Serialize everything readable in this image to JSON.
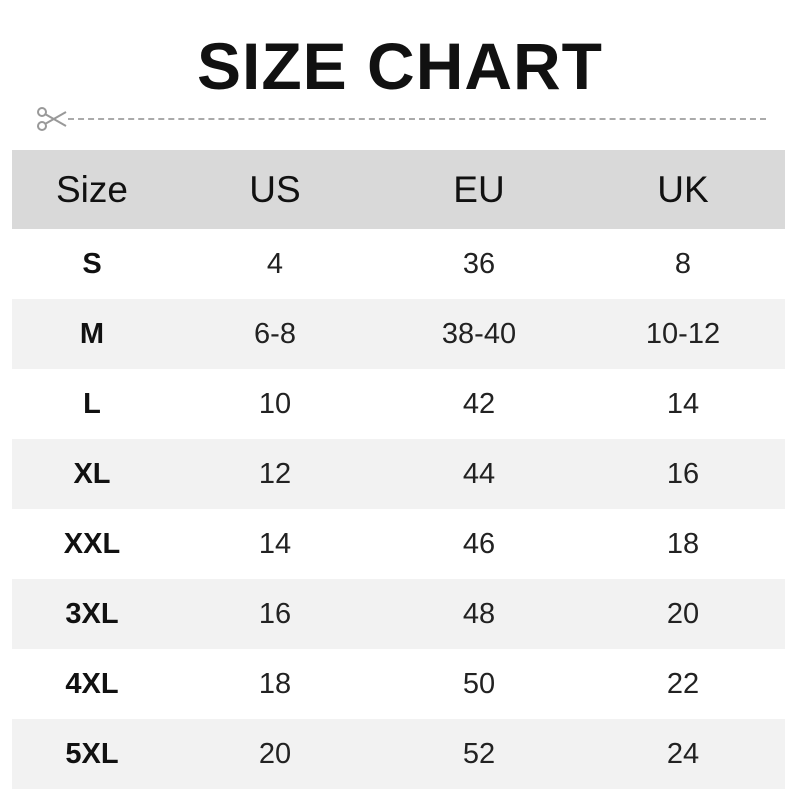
{
  "title": "SIZE CHART",
  "icons": {
    "cut": "scissors-icon"
  },
  "colors": {
    "header_bg": "#d9d9d9",
    "alt_row_bg": "#f2f2f2"
  },
  "table": {
    "headers": [
      "Size",
      "US",
      "EU",
      "UK"
    ],
    "rows": [
      [
        "S",
        "4",
        "36",
        "8"
      ],
      [
        "M",
        "6-8",
        "38-40",
        "10-12"
      ],
      [
        "L",
        "10",
        "42",
        "14"
      ],
      [
        "XL",
        "12",
        "44",
        "16"
      ],
      [
        "XXL",
        "14",
        "46",
        "18"
      ],
      [
        "3XL",
        "16",
        "48",
        "20"
      ],
      [
        "4XL",
        "18",
        "50",
        "22"
      ],
      [
        "5XL",
        "20",
        "52",
        "24"
      ]
    ]
  }
}
